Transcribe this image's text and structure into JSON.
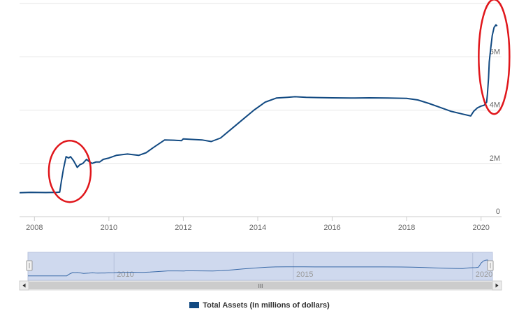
{
  "chart_data": {
    "type": "line",
    "title": "",
    "xlabel": "",
    "ylabel": "",
    "xlim": [
      2007.6,
      2020.55
    ],
    "ylim": [
      0,
      8000000
    ],
    "grid": "horizontal",
    "x_ticks": [
      "2008",
      "2010",
      "2012",
      "2014",
      "2016",
      "2018",
      "2020"
    ],
    "x_tick_values": [
      2008,
      2010,
      2012,
      2014,
      2016,
      2018,
      2020
    ],
    "y_ticks": [
      "0",
      "2M",
      "4M",
      "6M"
    ],
    "y_tick_values": [
      0,
      2000000,
      4000000,
      6000000
    ],
    "series": [
      {
        "name": "Total Assets (In millions of dollars)",
        "color": "#124a82",
        "x": [
          2007.6,
          2007.9,
          2008.3,
          2008.6,
          2008.68,
          2008.72,
          2008.78,
          2008.85,
          2008.92,
          2008.97,
          2009.05,
          2009.15,
          2009.22,
          2009.3,
          2009.4,
          2009.48,
          2009.55,
          2009.65,
          2009.75,
          2009.85,
          2010.0,
          2010.2,
          2010.5,
          2010.8,
          2011.0,
          2011.2,
          2011.5,
          2011.75,
          2011.95,
          2012.0,
          2012.2,
          2012.5,
          2012.75,
          2013.0,
          2013.3,
          2013.6,
          2013.9,
          2014.2,
          2014.5,
          2014.8,
          2015.0,
          2015.3,
          2015.6,
          2016.0,
          2016.5,
          2017.0,
          2017.5,
          2018.0,
          2018.3,
          2018.6,
          2018.9,
          2019.2,
          2019.5,
          2019.72,
          2019.8,
          2019.9,
          2020.0,
          2020.08,
          2020.15,
          2020.17,
          2020.2,
          2020.22,
          2020.25,
          2020.3,
          2020.35,
          2020.4,
          2020.43
        ],
        "values": [
          900000,
          910000,
          905000,
          910000,
          920000,
          1300000,
          1800000,
          2250000,
          2200000,
          2250000,
          2100000,
          1850000,
          1950000,
          2000000,
          2150000,
          2050000,
          2000000,
          2050000,
          2050000,
          2150000,
          2200000,
          2300000,
          2350000,
          2300000,
          2400000,
          2600000,
          2880000,
          2870000,
          2850000,
          2920000,
          2900000,
          2880000,
          2820000,
          2950000,
          3300000,
          3650000,
          4000000,
          4300000,
          4450000,
          4480000,
          4500000,
          4480000,
          4470000,
          4460000,
          4450000,
          4460000,
          4450000,
          4440000,
          4380000,
          4250000,
          4100000,
          3950000,
          3850000,
          3780000,
          3950000,
          4080000,
          4150000,
          4180000,
          4300000,
          4600000,
          5200000,
          5800000,
          6200000,
          6800000,
          7100000,
          7200000,
          7150000
        ]
      }
    ],
    "navigator": {
      "ticks": [
        "2010",
        "2015",
        "2020"
      ],
      "tick_values": [
        2010,
        2015,
        2020
      ],
      "scrollbar_grip": "III"
    },
    "legend": {
      "label": "Total Assets (In millions of dollars)",
      "placement": "bottom-center"
    },
    "annotations": [
      "red ellipse around 2008-2009 jump",
      "red ellipse around 2020 jump"
    ],
    "annotation_color": "#e0161b"
  }
}
